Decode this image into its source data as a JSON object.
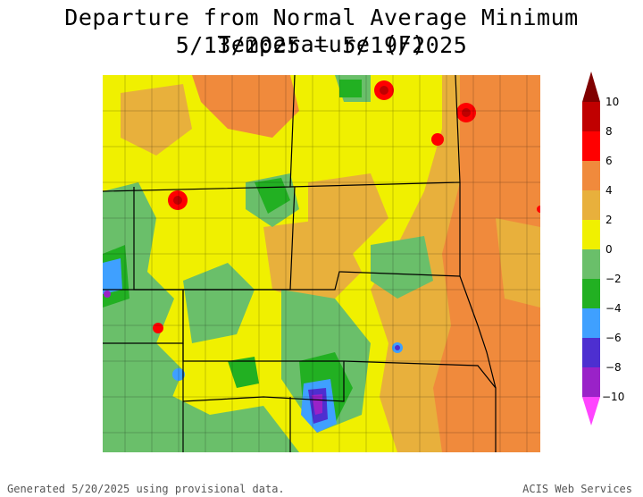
{
  "title_line1": "Departure from Normal Average Minimum Temperature (F)",
  "title_line2": "5/13/2025 – 5/19/2025",
  "footer_left": "Generated 5/20/2025 using provisional data.",
  "footer_right": "ACIS Web Services",
  "legend": {
    "labels": [
      "10",
      "8",
      "6",
      "4",
      "2",
      "0",
      "−2",
      "−4",
      "−6",
      "−8",
      "−10"
    ],
    "colors": {
      "gt10": "#800000",
      "8_10": "#c00000",
      "6_8": "#ff0000",
      "4_6": "#f08a3c",
      "2_4": "#e8b03c",
      "0_2": "#f0f000",
      "m2_0": "#6abf6a",
      "m4_m2": "#22b022",
      "m6_m4": "#3fa0ff",
      "m8_m6": "#4d2fd0",
      "m10_m8": "#9a22c8",
      "lt_m10": "#ff44ff"
    }
  }
}
